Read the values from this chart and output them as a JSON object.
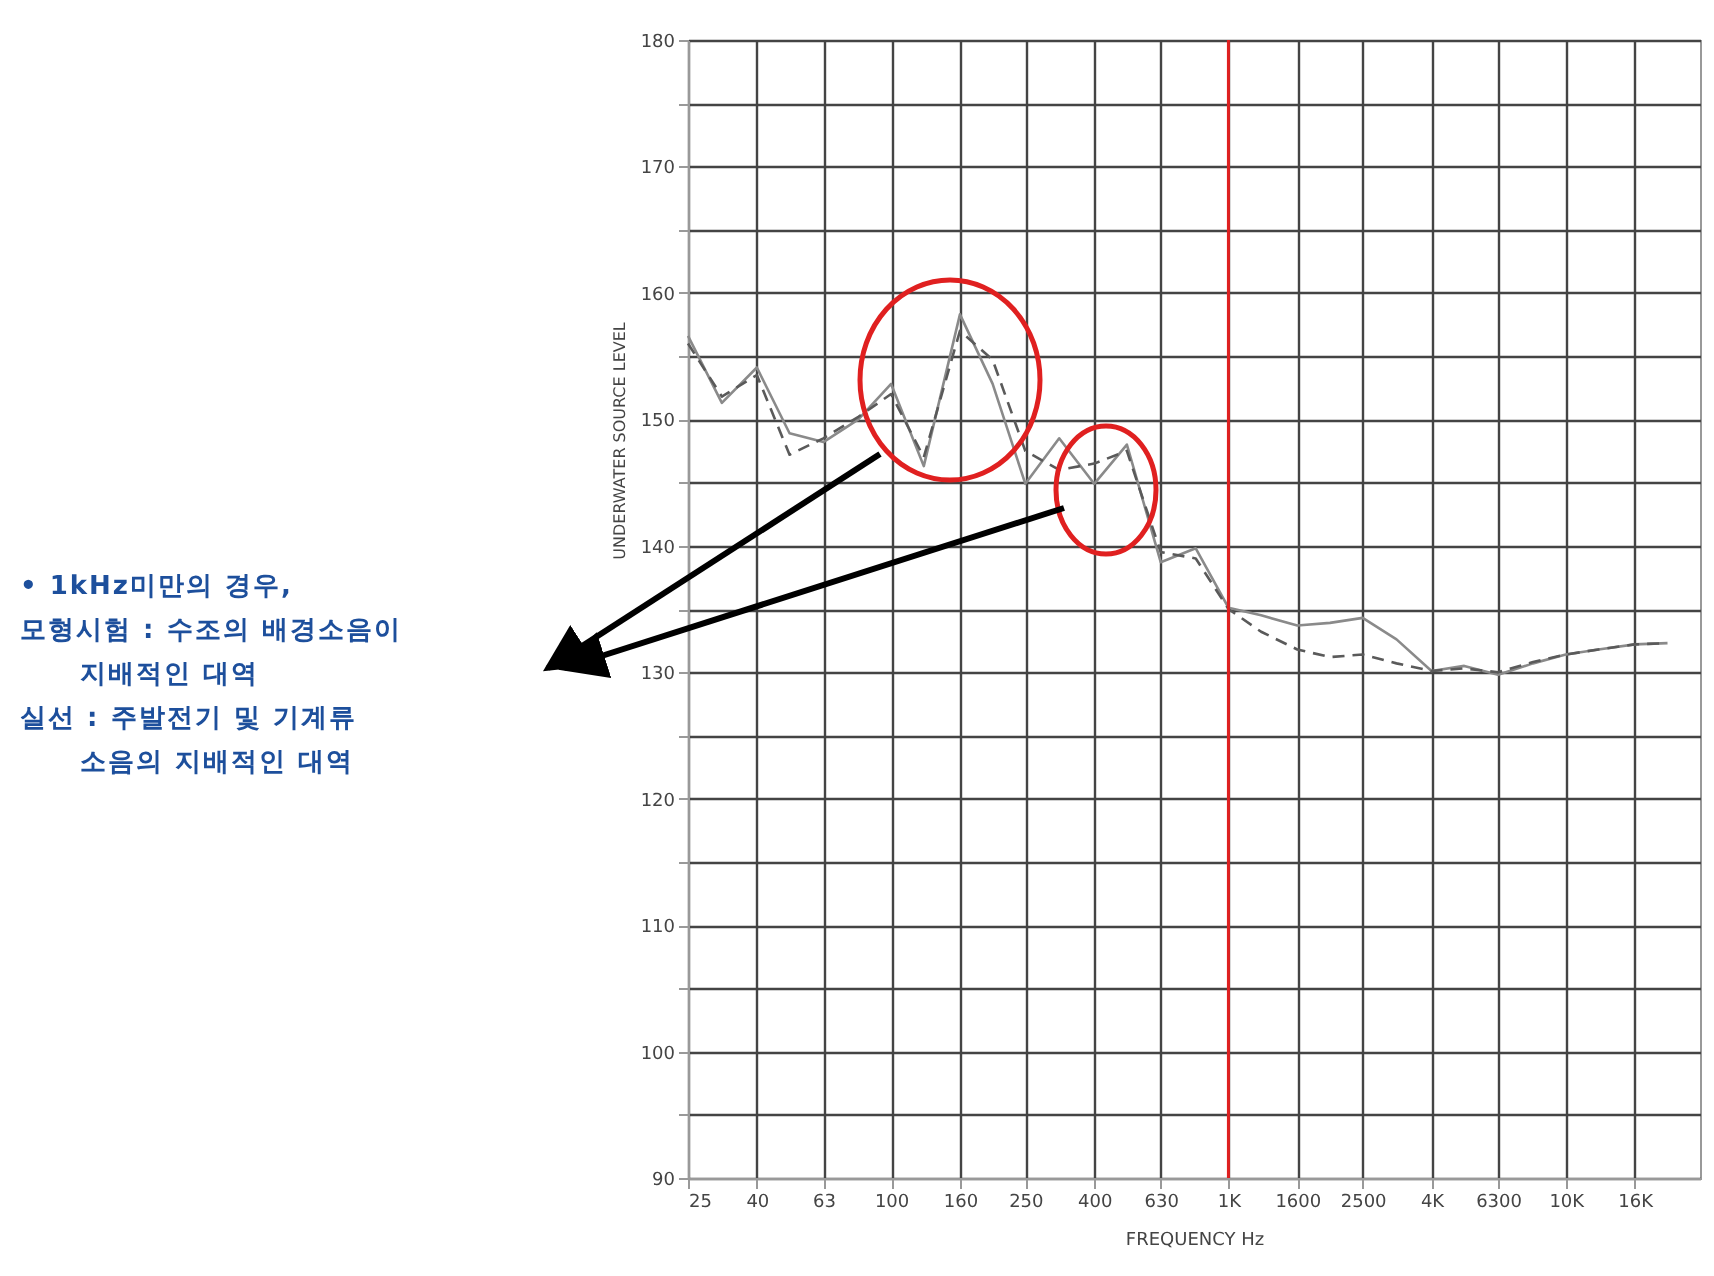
{
  "chart_data": {
    "type": "line",
    "xlabel": "FREQUENCY Hz",
    "ylabel": "UNDERWATER SOURCE LEVEL",
    "log": "x",
    "x": [
      25,
      31.5,
      40,
      50,
      63,
      80,
      100,
      125,
      160,
      200,
      250,
      315,
      400,
      500,
      630,
      800,
      1000,
      1250,
      1600,
      2000,
      2500,
      3150,
      4000,
      5000,
      6300,
      8000,
      10000,
      12500,
      16000,
      20000
    ],
    "series": [
      {
        "color": "#8a8a8a",
        "line_style": "solid",
        "values": [
          156.6,
          151.3,
          154.1,
          148.9,
          148.2,
          150,
          152.8,
          146.3,
          158.3,
          152.8,
          144.9,
          148.5,
          144.9,
          148,
          138.7,
          139.8,
          135.1,
          134.5,
          133.7,
          133.9,
          134.3,
          132.6,
          130.1,
          130.5,
          129.8,
          130.7,
          131.4,
          131.8,
          132.2,
          132.3
        ]
      },
      {
        "color": "#5a5a5a",
        "line_style": "dashed",
        "values": [
          156,
          151.8,
          153.5,
          147.2,
          148.5,
          150.2,
          152,
          147,
          157,
          154.7,
          147.5,
          146,
          146.5,
          147.5,
          139.5,
          139,
          135,
          133.2,
          131.8,
          131.2,
          131.4,
          130.7,
          130.1,
          130.3,
          130,
          130.8,
          131.4,
          131.8,
          132.2,
          132.3
        ]
      }
    ],
    "xlim": [
      25,
      25000
    ],
    "xticks": [
      25,
      40,
      63,
      100,
      160,
      250,
      400,
      630,
      {
        "value": 1000,
        "label": "1K"
      },
      1600,
      2500,
      {
        "value": 4000,
        "label": "4K"
      },
      6300,
      {
        "value": 10000,
        "label": "10K"
      },
      {
        "value": 16000,
        "label": "16K"
      }
    ],
    "ylim": [
      90,
      180
    ],
    "yticks": [
      90,
      {
        "value": 95,
        "label": null
      },
      100,
      {
        "value": 105,
        "label": null
      },
      110,
      {
        "value": 115,
        "label": null
      },
      120,
      {
        "value": 125,
        "label": null
      },
      130,
      {
        "value": 135,
        "label": null
      },
      140,
      {
        "value": 145,
        "label": null
      },
      150,
      {
        "value": 155,
        "label": null
      },
      160,
      {
        "value": 165,
        "label": null
      },
      170,
      {
        "value": 175,
        "label": null
      },
      180
    ],
    "grid": true,
    "marker": "none",
    "ref_lines": [
      {
        "axis": "x",
        "value": 1000,
        "color": "#e02020"
      }
    ],
    "annotations": [
      "• 1kHz미만의 경우,",
      "모형시험 : 수조의 배경소음이\n지배적인 대역",
      "실선 : 주발전기 및 기계류\n소음의 지배적인 대역"
    ]
  }
}
